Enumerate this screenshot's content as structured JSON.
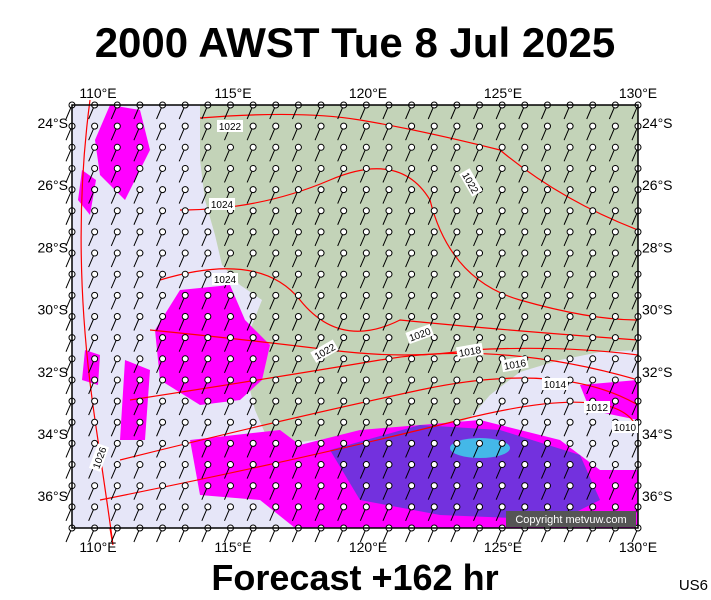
{
  "header": {
    "title": "2000 AWST Tue 8 Jul 2025"
  },
  "map": {
    "lon_labels": [
      "110°E",
      "115°E",
      "120°E",
      "125°E",
      "130°E"
    ],
    "lat_labels": [
      "24°S",
      "26°S",
      "28°S",
      "30°S",
      "32°S",
      "34°S",
      "36°S"
    ],
    "isobar_labels": [
      "1022",
      "1024",
      "1024",
      "1022",
      "1022",
      "1020",
      "1018",
      "1016",
      "1014",
      "1012",
      "1010",
      "1026"
    ],
    "copyright": "Copyright metvuw.com"
  },
  "footer": {
    "forecast": "Forecast +162 hr",
    "code": "US6"
  }
}
